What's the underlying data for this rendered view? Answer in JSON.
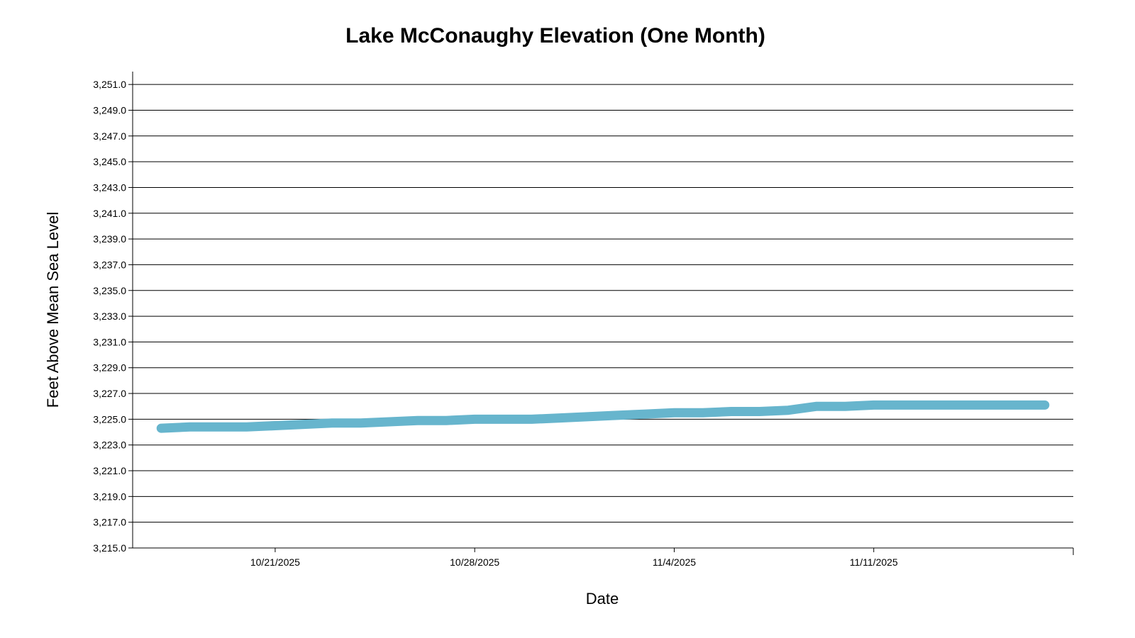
{
  "chart_data": {
    "type": "line",
    "title": "Lake McConaughy Elevation (One Month)",
    "xlabel": "Date",
    "ylabel": "Feet Above Mean Sea Level",
    "ylim": [
      3215.0,
      3252.0
    ],
    "yticks": [
      3215.0,
      3217.0,
      3219.0,
      3221.0,
      3223.0,
      3225.0,
      3227.0,
      3229.0,
      3231.0,
      3233.0,
      3235.0,
      3237.0,
      3239.0,
      3241.0,
      3243.0,
      3245.0,
      3247.0,
      3249.0,
      3251.0
    ],
    "ytick_labels": [
      "3,215.0",
      "3,217.0",
      "3,219.0",
      "3,221.0",
      "3,223.0",
      "3,225.0",
      "3,227.0",
      "3,229.0",
      "3,231.0",
      "3,233.0",
      "3,235.0",
      "3,237.0",
      "3,239.0",
      "3,241.0",
      "3,243.0",
      "3,245.0",
      "3,247.0",
      "3,249.0",
      "3,251.0"
    ],
    "xlim": [
      "2025-10-16",
      "2025-11-18"
    ],
    "xticks": [
      "2025-10-21",
      "2025-10-28",
      "2025-11-04",
      "2025-11-11"
    ],
    "xtick_labels": [
      "10/21/2025",
      "10/28/2025",
      "11/4/2025",
      "11/11/2025"
    ],
    "grid": true,
    "series_color": "#67b5cd",
    "series": [
      {
        "x": [
          "2025-10-17",
          "2025-10-18",
          "2025-10-19",
          "2025-10-20",
          "2025-10-21",
          "2025-10-22",
          "2025-10-23",
          "2025-10-24",
          "2025-10-25",
          "2025-10-26",
          "2025-10-27",
          "2025-10-28",
          "2025-10-29",
          "2025-10-30",
          "2025-10-31",
          "2025-11-01",
          "2025-11-02",
          "2025-11-03",
          "2025-11-04",
          "2025-11-05",
          "2025-11-06",
          "2025-11-07",
          "2025-11-08",
          "2025-11-09",
          "2025-11-10",
          "2025-11-11",
          "2025-11-12",
          "2025-11-13",
          "2025-11-14",
          "2025-11-15",
          "2025-11-16",
          "2025-11-17"
        ],
        "values": [
          3224.3,
          3224.4,
          3224.4,
          3224.4,
          3224.5,
          3224.6,
          3224.7,
          3224.7,
          3224.8,
          3224.9,
          3224.9,
          3225.0,
          3225.0,
          3225.0,
          3225.1,
          3225.2,
          3225.3,
          3225.4,
          3225.5,
          3225.5,
          3225.6,
          3225.6,
          3225.7,
          3226.0,
          3226.0,
          3226.1,
          3226.1,
          3226.1,
          3226.1,
          3226.1,
          3226.1,
          3226.1
        ]
      }
    ]
  }
}
